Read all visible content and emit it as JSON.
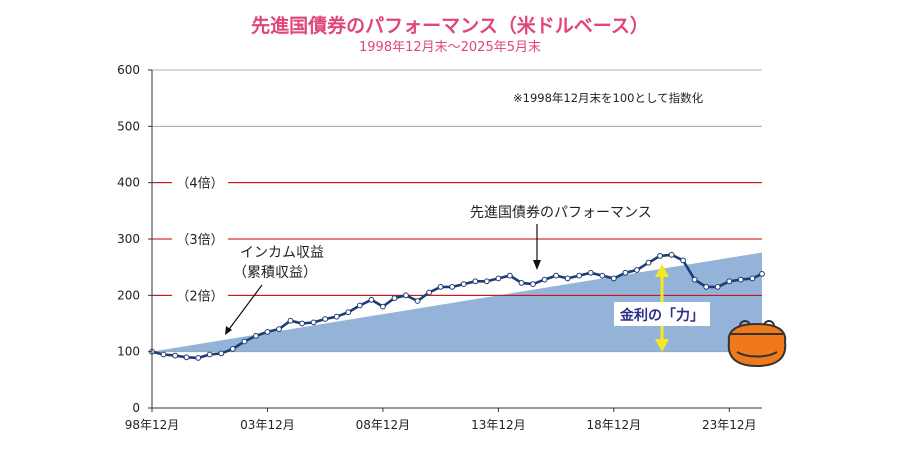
{
  "chart_data": {
    "type": "area",
    "title": "先進国債券のパフォーマンス（米ドルベース）",
    "subtitle": "1998年12月末〜2025年5月末",
    "note": "※1998年12月末を100として指数化",
    "ylim": [
      0,
      600
    ],
    "yticks": [
      0,
      100,
      200,
      300,
      400,
      500,
      600
    ],
    "x_range": [
      "1998-12",
      "2025-05"
    ],
    "x_tick_labels": [
      "98年12月",
      "03年12月",
      "08年12月",
      "13年12月",
      "18年12月",
      "23年12月"
    ],
    "grid": true,
    "reference_lines": [
      {
        "y": 200,
        "label": "（2倍）",
        "color": "#cc0000"
      },
      {
        "y": 300,
        "label": "（3倍）",
        "color": "#cc0000"
      },
      {
        "y": 400,
        "label": "（4倍）",
        "color": "#cc0000"
      }
    ],
    "series": [
      {
        "name": "インカム収益（累積収益）",
        "kind": "area",
        "color": "#94b3d9",
        "x": [
          "1998-12",
          "2025-05"
        ],
        "values": [
          100,
          276
        ]
      },
      {
        "name": "先進国債券のパフォーマンス",
        "kind": "line",
        "color": "#1f3c75",
        "x": [
          "1998-12",
          "1999-06",
          "1999-12",
          "2000-06",
          "2000-12",
          "2001-06",
          "2001-12",
          "2002-06",
          "2002-12",
          "2003-06",
          "2003-12",
          "2004-06",
          "2004-12",
          "2005-06",
          "2005-12",
          "2006-06",
          "2006-12",
          "2007-06",
          "2007-12",
          "2008-06",
          "2008-12",
          "2009-06",
          "2009-12",
          "2010-06",
          "2010-12",
          "2011-06",
          "2011-12",
          "2012-06",
          "2012-12",
          "2013-06",
          "2013-12",
          "2014-06",
          "2014-12",
          "2015-06",
          "2015-12",
          "2016-06",
          "2016-12",
          "2017-06",
          "2017-12",
          "2018-06",
          "2018-12",
          "2019-06",
          "2019-12",
          "2020-06",
          "2020-12",
          "2021-06",
          "2021-12",
          "2022-06",
          "2022-12",
          "2023-06",
          "2023-12",
          "2024-06",
          "2024-12",
          "2025-05"
        ],
        "values": [
          100,
          95,
          93,
          90,
          89,
          95,
          97,
          105,
          118,
          128,
          135,
          140,
          155,
          150,
          152,
          158,
          162,
          170,
          182,
          192,
          180,
          195,
          200,
          190,
          205,
          215,
          215,
          220,
          225,
          225,
          230,
          235,
          222,
          220,
          228,
          235,
          230,
          235,
          240,
          235,
          230,
          240,
          245,
          258,
          270,
          272,
          262,
          228,
          215,
          215,
          225,
          228,
          230,
          238
        ]
      }
    ],
    "annotations": {
      "income_label_line1": "インカム収益",
      "income_label_line2": "（累積収益）",
      "performance_label": "先進国債券のパフォーマンス",
      "kinri_label": "金利の「力」"
    }
  }
}
